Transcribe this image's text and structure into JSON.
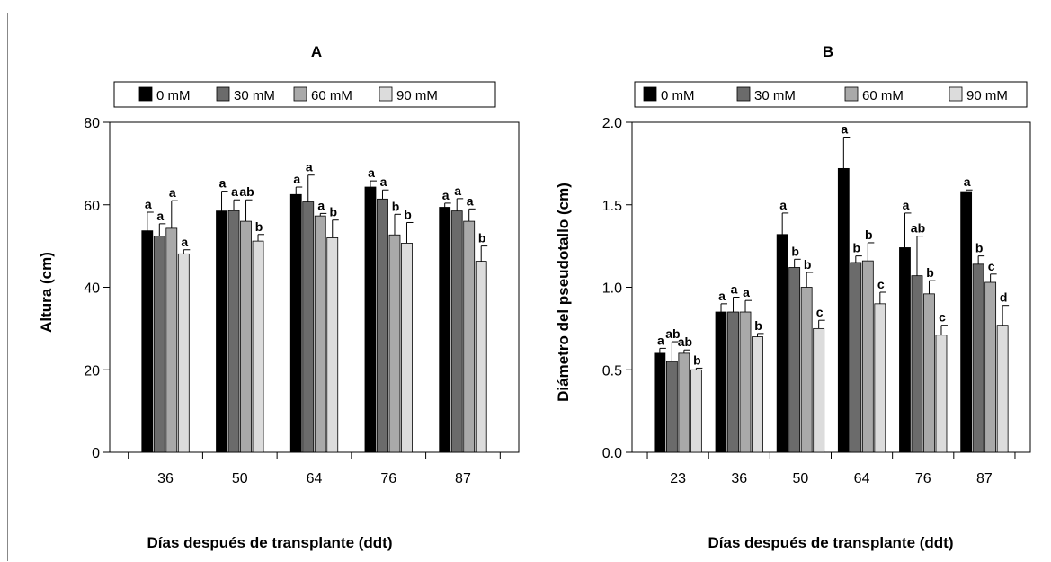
{
  "chart_data": [
    {
      "type": "bar",
      "title": "A",
      "xlabel": "Días después de transplante (ddt)",
      "ylabel": "Altura (cm)",
      "ylim": [
        0,
        80
      ],
      "yticks": [
        "0",
        "20",
        "40",
        "60",
        "80"
      ],
      "categories": [
        "36",
        "50",
        "64",
        "76",
        "87"
      ],
      "legend_position": "top",
      "series": [
        {
          "name": "0 mM",
          "color": "#000000",
          "values": [
            53.7,
            58.5,
            62.5,
            64.3,
            59.4
          ],
          "errors": [
            4.5,
            4.8,
            1.8,
            1.5,
            1.0
          ],
          "letters": [
            "a",
            "a",
            "a",
            "a",
            "a"
          ]
        },
        {
          "name": "30 mM",
          "color": "#6b6b6b",
          "values": [
            52.4,
            58.6,
            60.7,
            61.4,
            58.5
          ],
          "errors": [
            3.0,
            2.6,
            6.5,
            2.2,
            3.0
          ],
          "letters": [
            "a",
            "a",
            "a",
            "a",
            "a"
          ]
        },
        {
          "name": "60 mM",
          "color": "#a9a9a9",
          "values": [
            54.3,
            56.0,
            57.3,
            52.7,
            56.0
          ],
          "errors": [
            6.7,
            5.2,
            0.6,
            5.0,
            3.0
          ],
          "letters": [
            "a",
            "ab",
            "a",
            "b",
            "a"
          ]
        },
        {
          "name": "90 mM",
          "color": "#dcdcdc",
          "values": [
            48.1,
            51.2,
            52.0,
            50.7,
            46.3
          ],
          "errors": [
            1.0,
            1.6,
            4.3,
            5.0,
            3.7
          ],
          "letters": [
            "a",
            "b",
            "b",
            "b",
            "b"
          ]
        }
      ]
    },
    {
      "type": "bar",
      "title": "B",
      "xlabel": "Días después de transplante (ddt)",
      "ylabel": "Diámetro del pseudotallo (cm)",
      "ylim": [
        0,
        2.0
      ],
      "yticks": [
        "0.0",
        "0.5",
        "1.0",
        "1.5",
        "2.0"
      ],
      "categories": [
        "23",
        "36",
        "50",
        "64",
        "76",
        "87"
      ],
      "legend_position": "top",
      "series": [
        {
          "name": "0 mM",
          "color": "#000000",
          "values": [
            0.6,
            0.85,
            1.32,
            1.72,
            1.24,
            1.58
          ],
          "errors": [
            0.03,
            0.05,
            0.13,
            0.19,
            0.21,
            0.01
          ],
          "letters": [
            "a",
            "a",
            "a",
            "a",
            "a",
            "a"
          ]
        },
        {
          "name": "30 mM",
          "color": "#6b6b6b",
          "values": [
            0.55,
            0.85,
            1.12,
            1.15,
            1.07,
            1.14
          ],
          "errors": [
            0.12,
            0.09,
            0.05,
            0.04,
            0.24,
            0.05
          ],
          "letters": [
            "ab",
            "a",
            "b",
            "b",
            "ab",
            "b"
          ]
        },
        {
          "name": "60 mM",
          "color": "#a9a9a9",
          "values": [
            0.6,
            0.85,
            1.0,
            1.16,
            0.96,
            1.03
          ],
          "errors": [
            0.02,
            0.07,
            0.09,
            0.11,
            0.08,
            0.05
          ],
          "letters": [
            "ab",
            "a",
            "b",
            "b",
            "b",
            "c"
          ]
        },
        {
          "name": "90 mM",
          "color": "#dcdcdc",
          "values": [
            0.5,
            0.7,
            0.75,
            0.9,
            0.71,
            0.77
          ],
          "errors": [
            0.01,
            0.02,
            0.05,
            0.07,
            0.06,
            0.12
          ],
          "letters": [
            "b",
            "b",
            "c",
            "c",
            "c",
            "d"
          ]
        }
      ]
    }
  ]
}
